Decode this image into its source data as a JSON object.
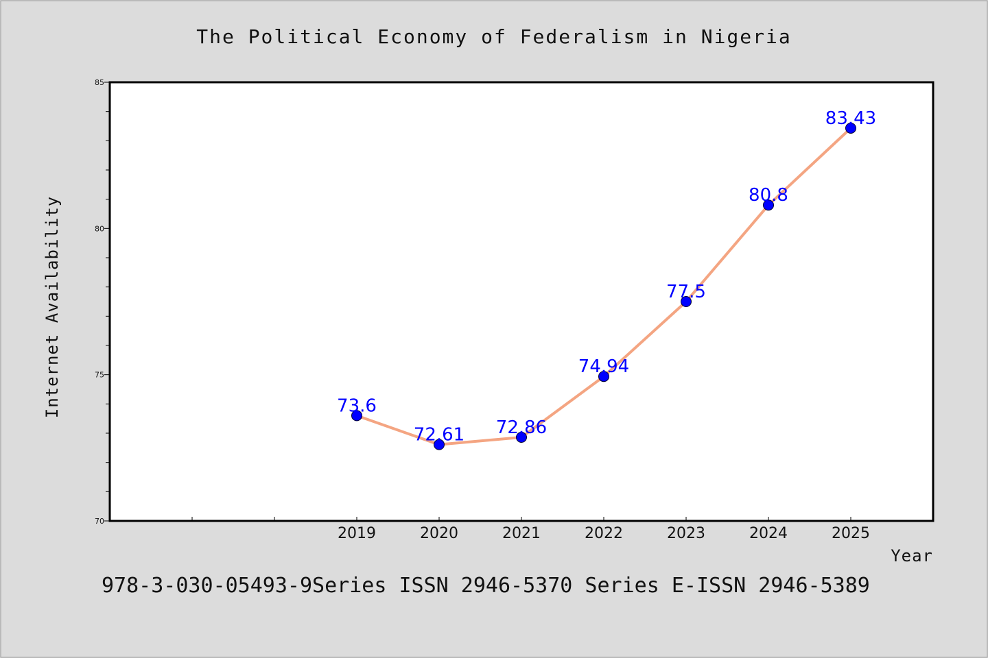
{
  "chart_data": {
    "type": "line",
    "title": "The Political Economy of Federalism in Nigeria",
    "xlabel": "Year",
    "ylabel": "Internet Availability",
    "x": [
      "2019",
      "2020",
      "2021",
      "2022",
      "2023",
      "2024",
      "2025"
    ],
    "series": [
      {
        "values": [
          73.6,
          72.61,
          72.86,
          74.94,
          77.5,
          80.8,
          83.43
        ]
      }
    ],
    "data_labels": [
      "73.6",
      "72.61",
      "72.86",
      "74.94",
      "77.5",
      "80.8",
      "83.43"
    ],
    "ylim": [
      70,
      85
    ],
    "yticks": [
      "70",
      "75",
      "80",
      "85"
    ],
    "x_slots": 10,
    "grid": false,
    "line_color": "#f4a582",
    "marker_color": "#0000ff",
    "label_color": "#0000ff"
  },
  "footer": {
    "text": "978-3-030-05493-9Series ISSN 2946-5370 Series E-ISSN 2946-5389"
  },
  "colors": {
    "background": "#dcdcdc",
    "plot_background": "#ffffff"
  }
}
